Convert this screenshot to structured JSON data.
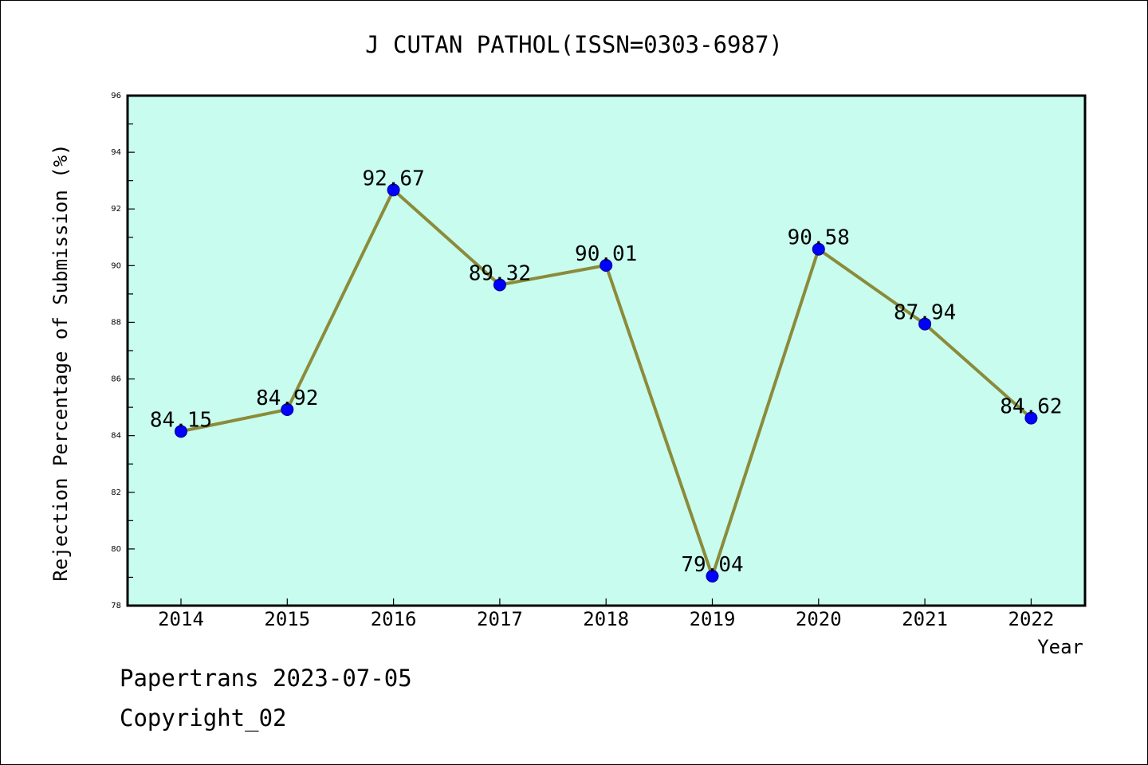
{
  "chart_data": {
    "type": "line",
    "title": "J CUTAN PATHOL(ISSN=0303-6987)",
    "xlabel": "Year",
    "ylabel": "Rejection Percentage of Submission (%)",
    "categories": [
      "2014",
      "2015",
      "2016",
      "2017",
      "2018",
      "2019",
      "2020",
      "2021",
      "2022"
    ],
    "series": [
      {
        "values": [
          84.15,
          84.92,
          92.67,
          89.32,
          90.01,
          79.04,
          90.58,
          87.94,
          84.62
        ],
        "data_labels": [
          "84.15",
          "84.92",
          "92.67",
          "89.32",
          "90.01",
          "79.04",
          "90.58",
          "87.94",
          "84.62"
        ]
      }
    ],
    "ylim": [
      78,
      96
    ],
    "yticks": [
      "78",
      "80",
      "82",
      "84",
      "86",
      "88",
      "90",
      "92",
      "94",
      "96"
    ],
    "grid": false,
    "legend": "none",
    "colors": {
      "plot_background": "#c8fcee",
      "line": "#8b8b3a",
      "marker": "#0000ff",
      "axes": "#000000"
    }
  },
  "footer": {
    "line1": "Papertrans 2023-07-05",
    "line2": "Copyright_02"
  }
}
